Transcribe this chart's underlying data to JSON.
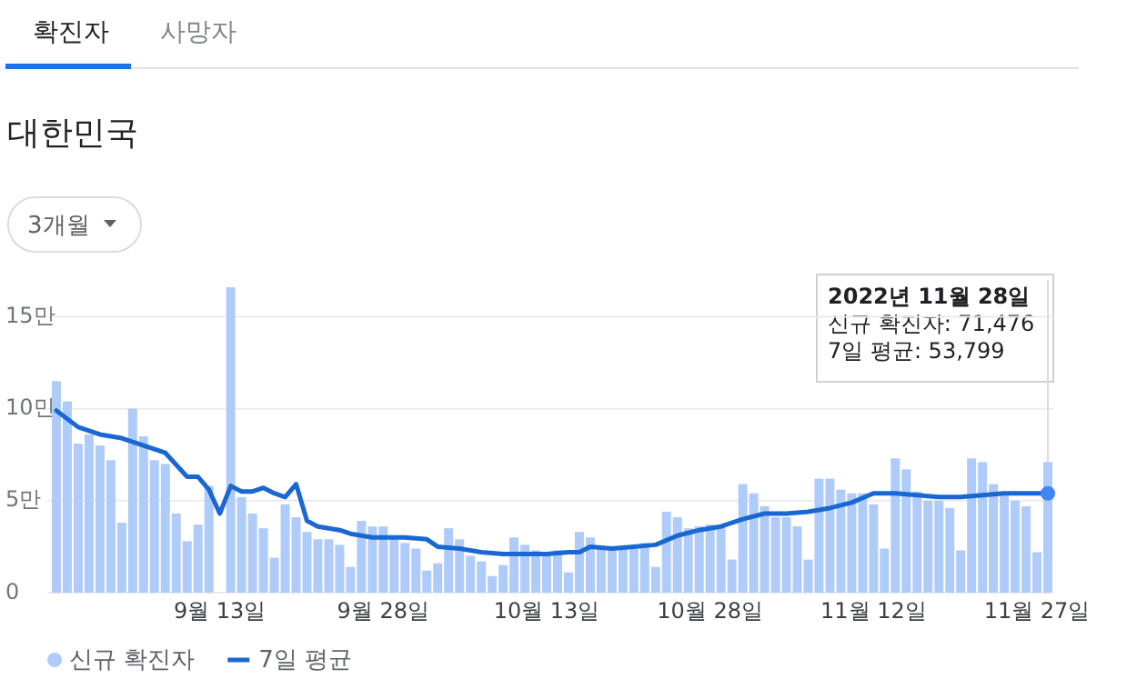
{
  "chart_data": {
    "type": "bar",
    "title": "대한민국",
    "annotations": [
      "확진자",
      "사망자",
      "3개월",
      "2022년 11월 28일\n신규 확진자: 71,476\n7일 평균: 53,799"
    ],
    "x": [
      "2022-08-29",
      "2022-08-30",
      "2022-08-31",
      "2022-09-01",
      "2022-09-02",
      "2022-09-03",
      "2022-09-04",
      "2022-09-05",
      "2022-09-06",
      "2022-09-07",
      "2022-09-08",
      "2022-09-09",
      "2022-09-10",
      "2022-09-11",
      "2022-09-12",
      "2022-09-13",
      "2022-09-14",
      "2022-09-15",
      "2022-09-16",
      "2022-09-17",
      "2022-09-18",
      "2022-09-19",
      "2022-09-20",
      "2022-09-21",
      "2022-09-22",
      "2022-09-23",
      "2022-09-24",
      "2022-09-25",
      "2022-09-26",
      "2022-09-27",
      "2022-09-28",
      "2022-09-29",
      "2022-09-30",
      "2022-10-01",
      "2022-10-02",
      "2022-10-03",
      "2022-10-04",
      "2022-10-05",
      "2022-10-06",
      "2022-10-07",
      "2022-10-08",
      "2022-10-09",
      "2022-10-10",
      "2022-10-11",
      "2022-10-12",
      "2022-10-13",
      "2022-10-14",
      "2022-10-15",
      "2022-10-16",
      "2022-10-17",
      "2022-10-18",
      "2022-10-19",
      "2022-10-20",
      "2022-10-21",
      "2022-10-22",
      "2022-10-23",
      "2022-10-24",
      "2022-10-25",
      "2022-10-26",
      "2022-10-27",
      "2022-10-28",
      "2022-10-29",
      "2022-10-30",
      "2022-10-31",
      "2022-11-01",
      "2022-11-02",
      "2022-11-03",
      "2022-11-04",
      "2022-11-05",
      "2022-11-06",
      "2022-11-07",
      "2022-11-08",
      "2022-11-09",
      "2022-11-10",
      "2022-11-11",
      "2022-11-12",
      "2022-11-13",
      "2022-11-14",
      "2022-11-15",
      "2022-11-16",
      "2022-11-17",
      "2022-11-18",
      "2022-11-19",
      "2022-11-20",
      "2022-11-21",
      "2022-11-22",
      "2022-11-23",
      "2022-11-24",
      "2022-11-25",
      "2022-11-26",
      "2022-11-27",
      "2022-11-28"
    ],
    "series": [
      {
        "name": "신규 확진자",
        "color": "#aecbfa",
        "values": [
          11.5,
          10.4,
          8.1,
          8.6,
          8.0,
          7.2,
          3.8,
          10.0,
          8.5,
          7.2,
          7.0,
          4.3,
          2.8,
          3.7,
          5.8,
          0,
          16.6,
          5.2,
          4.3,
          3.5,
          1.9,
          4.8,
          4.1,
          3.3,
          2.9,
          2.9,
          2.6,
          1.4,
          3.9,
          3.6,
          3.6,
          3.0,
          2.7,
          2.4,
          1.2,
          1.6,
          3.5,
          2.9,
          2.0,
          1.7,
          0.9,
          1.5,
          3.0,
          2.6,
          2.3,
          2.2,
          2.3,
          1.1,
          3.3,
          3.0,
          2.5,
          2.5,
          2.5,
          2.5,
          2.7,
          1.4,
          4.4,
          4.1,
          3.5,
          3.6,
          3.7,
          3.6,
          1.8,
          5.9,
          5.4,
          4.7,
          4.1,
          4.1,
          3.6,
          1.8,
          6.2,
          6.2,
          5.6,
          5.4,
          5.4,
          4.8,
          2.4,
          7.3,
          6.7,
          5.5,
          5.0,
          5.0,
          4.6,
          2.3,
          7.3,
          7.1,
          5.9,
          5.4,
          5.0,
          4.7,
          2.2,
          7.1
        ]
      },
      {
        "name": "7일 평균",
        "type": "line",
        "color": "#1967d2",
        "x": [
          "2022-08-29",
          "2022-08-31",
          "2022-09-02",
          "2022-09-04",
          "2022-09-06",
          "2022-09-08",
          "2022-09-10",
          "2022-09-11",
          "2022-09-12",
          "2022-09-13",
          "2022-09-14",
          "2022-09-15",
          "2022-09-16",
          "2022-09-17",
          "2022-09-18",
          "2022-09-19",
          "2022-09-20",
          "2022-09-21",
          "2022-09-22",
          "2022-09-23",
          "2022-09-24",
          "2022-09-25",
          "2022-09-26",
          "2022-09-27",
          "2022-09-28",
          "2022-09-30",
          "2022-10-02",
          "2022-10-03",
          "2022-10-05",
          "2022-10-07",
          "2022-10-09",
          "2022-10-11",
          "2022-10-13",
          "2022-10-15",
          "2022-10-16",
          "2022-10-17",
          "2022-10-19",
          "2022-10-21",
          "2022-10-23",
          "2022-10-25",
          "2022-10-27",
          "2022-10-29",
          "2022-10-31",
          "2022-11-02",
          "2022-11-04",
          "2022-11-06",
          "2022-11-08",
          "2022-11-10",
          "2022-11-12",
          "2022-11-14",
          "2022-11-16",
          "2022-11-18",
          "2022-11-20",
          "2022-11-22",
          "2022-11-24",
          "2022-11-26",
          "2022-11-28"
        ],
        "values": [
          9.9,
          9.0,
          8.6,
          8.4,
          8.0,
          7.6,
          6.3,
          6.3,
          5.6,
          4.3,
          5.8,
          5.5,
          5.5,
          5.7,
          5.4,
          5.2,
          5.9,
          3.9,
          3.6,
          3.5,
          3.4,
          3.2,
          3.1,
          3.0,
          3.0,
          3.0,
          2.9,
          2.5,
          2.4,
          2.2,
          2.1,
          2.1,
          2.1,
          2.2,
          2.2,
          2.5,
          2.4,
          2.5,
          2.6,
          3.1,
          3.4,
          3.6,
          4.0,
          4.3,
          4.3,
          4.4,
          4.6,
          4.9,
          5.4,
          5.4,
          5.3,
          5.2,
          5.2,
          5.3,
          5.4,
          5.4,
          5.4
        ]
      }
    ],
    "xlim": [
      "2022-08-28T12:00",
      "2022-11-28T12:00"
    ],
    "xticks": [
      {
        "value": "2022-09-13",
        "label": "9월 13일"
      },
      {
        "value": "2022-09-28",
        "label": "9월 28일"
      },
      {
        "value": "2022-10-13",
        "label": "10월 13일"
      },
      {
        "value": "2022-10-28",
        "label": "10월 28일"
      },
      {
        "value": "2022-11-12",
        "label": "11월 12일"
      },
      {
        "value": "2022-11-27",
        "label": "11월 27일"
      }
    ],
    "ref_lines": [
      {
        "axis": "x",
        "value": "2022-11-28",
        "color": "#dadce0"
      }
    ],
    "ylim": [
      0,
      17
    ],
    "yticks": [
      0,
      {
        "value": 5,
        "label": "5만"
      },
      {
        "value": 10,
        "label": "10만"
      },
      {
        "value": 15,
        "label": "15만"
      }
    ],
    "grid": "y",
    "legend": "bottom left",
    "line_style": "solid",
    "marker": "none"
  }
}
